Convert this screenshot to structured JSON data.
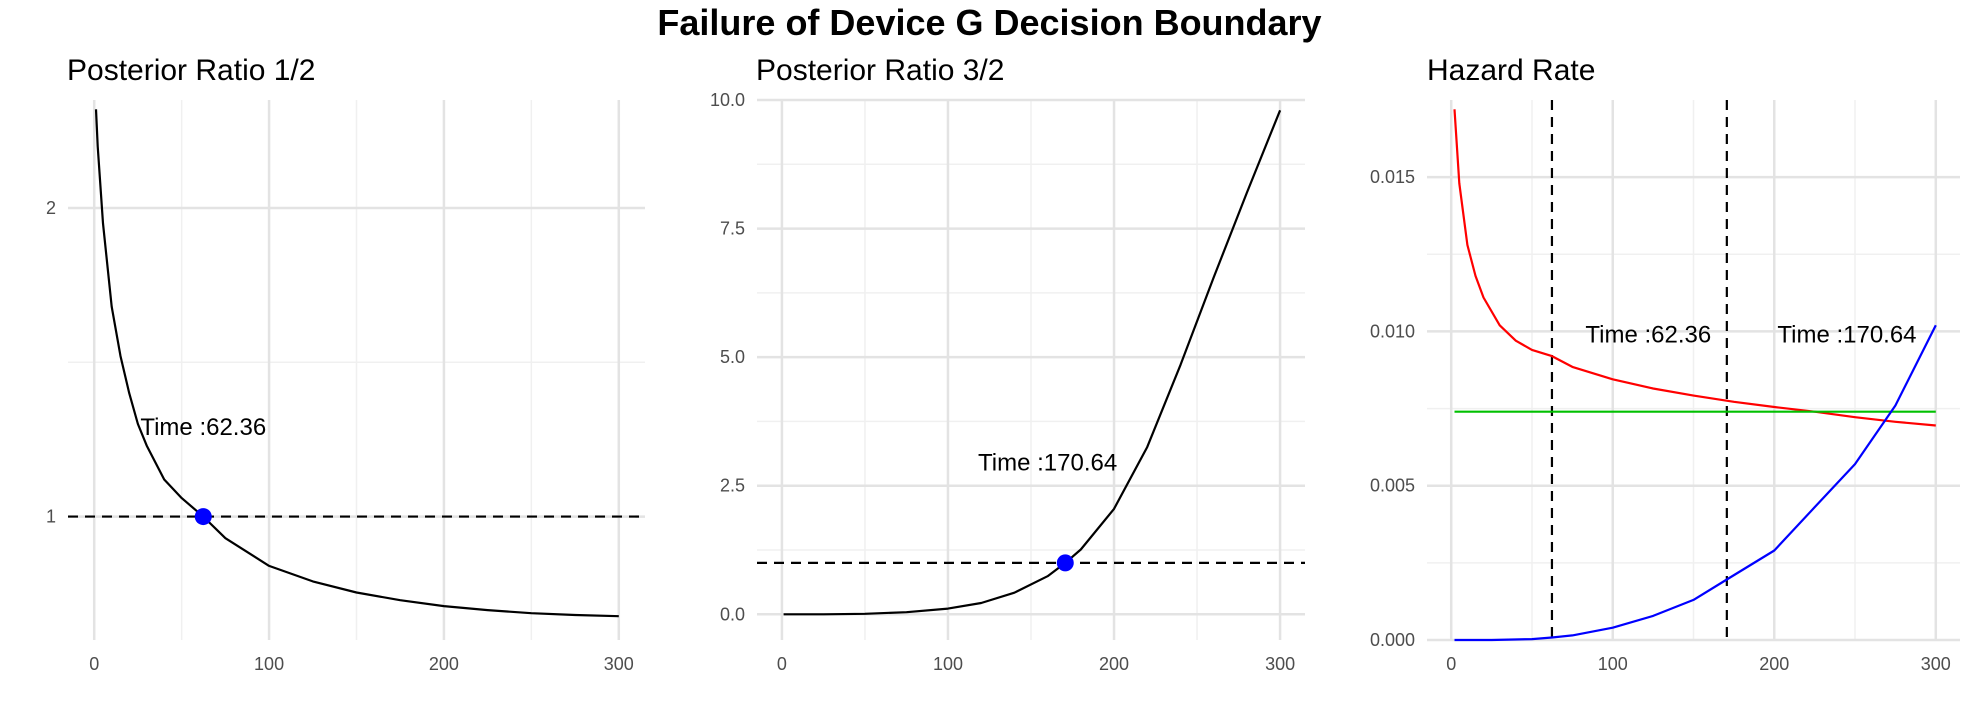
{
  "title": "Failure of Device G Decision Boundary",
  "chart_data": [
    {
      "type": "line",
      "title": "Posterior Ratio 1/2",
      "xlabel": "",
      "ylabel": "",
      "xlim": [
        0,
        300
      ],
      "ylim": [
        0.6,
        2.35
      ],
      "xticks": [
        0,
        100,
        200,
        300
      ],
      "xtick_labels": [
        "0",
        "100",
        "200",
        "300"
      ],
      "yticks": [
        1,
        2
      ],
      "ytick_labels": [
        "1",
        "2"
      ],
      "grid": true,
      "series": [
        {
          "color": "#000000",
          "x": [
            1,
            2,
            5,
            10,
            15,
            20,
            25,
            30,
            40,
            50,
            62.36,
            75,
            100,
            125,
            150,
            175,
            200,
            225,
            250,
            275,
            300
          ],
          "y": [
            2.32,
            2.2,
            1.95,
            1.68,
            1.52,
            1.4,
            1.3,
            1.23,
            1.12,
            1.06,
            1.0,
            0.93,
            0.84,
            0.79,
            0.754,
            0.729,
            0.71,
            0.697,
            0.687,
            0.681,
            0.677
          ]
        }
      ],
      "hlines": [
        {
          "y": 1,
          "style": "dashed"
        }
      ],
      "points": [
        {
          "x": 62.36,
          "y": 1,
          "color": "#0000ff"
        }
      ],
      "annotations": [
        {
          "text": "Time :62.36",
          "x": 62.36,
          "y": 1.29
        }
      ]
    },
    {
      "type": "line",
      "title": "Posterior Ratio 3/2",
      "xlabel": "",
      "ylabel": "",
      "xlim": [
        0,
        300
      ],
      "ylim": [
        -0.5,
        10.0
      ],
      "xticks": [
        0,
        100,
        200,
        300
      ],
      "xtick_labels": [
        "0",
        "100",
        "200",
        "300"
      ],
      "yticks": [
        0,
        2.5,
        5,
        7.5,
        10
      ],
      "ytick_labels": [
        "0.0",
        "2.5",
        "5.0",
        "7.5",
        "10.0"
      ],
      "grid": true,
      "series": [
        {
          "color": "#000000",
          "x": [
            1,
            25,
            50,
            75,
            100,
            120,
            140,
            160,
            170.64,
            180,
            200,
            220,
            240,
            260,
            280,
            300
          ],
          "y": [
            0.0,
            0.0,
            0.01,
            0.04,
            0.11,
            0.22,
            0.42,
            0.74,
            1.0,
            1.26,
            2.05,
            3.25,
            4.85,
            6.55,
            8.2,
            9.8
          ]
        }
      ],
      "hlines": [
        {
          "y": 1,
          "style": "dashed"
        }
      ],
      "points": [
        {
          "x": 170.64,
          "y": 1,
          "color": "#0000ff"
        }
      ],
      "annotations": [
        {
          "text": "Time :170.64",
          "x": 160,
          "y": 2.95
        }
      ]
    },
    {
      "type": "line",
      "title": "Hazard Rate",
      "xlabel": "",
      "ylabel": "",
      "xlim": [
        0,
        300
      ],
      "ylim": [
        0,
        0.0175
      ],
      "xticks": [
        0,
        100,
        200,
        300
      ],
      "xtick_labels": [
        "0",
        "100",
        "200",
        "300"
      ],
      "yticks": [
        0,
        0.005,
        0.01,
        0.015
      ],
      "ytick_labels": [
        "0.000",
        "0.005",
        "0.010",
        "0.015"
      ],
      "grid": true,
      "series": [
        {
          "color": "#ff0000",
          "x": [
            2,
            5,
            10,
            15,
            20,
            30,
            40,
            50,
            62.36,
            75,
            100,
            125,
            150,
            175,
            200,
            225,
            250,
            275,
            300
          ],
          "y": [
            0.0172,
            0.0148,
            0.0128,
            0.0118,
            0.0111,
            0.0102,
            0.0097,
            0.0094,
            0.0092,
            0.00885,
            0.00845,
            0.00815,
            0.00792,
            0.00772,
            0.00755,
            0.0074,
            0.00722,
            0.00707,
            0.00695
          ]
        },
        {
          "color": "#00c000",
          "x": [
            2,
            300
          ],
          "y": [
            0.0074,
            0.0074
          ]
        },
        {
          "color": "#0000ff",
          "x": [
            2,
            25,
            50,
            62.36,
            75,
            100,
            125,
            150,
            170.64,
            200,
            225,
            250,
            275,
            300
          ],
          "y": [
            0.0,
            0.0,
            3e-05,
            8e-05,
            0.00015,
            0.0004,
            0.00078,
            0.0013,
            0.00196,
            0.0029,
            0.0043,
            0.0057,
            0.0076,
            0.0102
          ]
        }
      ],
      "vlines": [
        {
          "x": 62.36,
          "style": "dashed"
        },
        {
          "x": 170.64,
          "style": "dashed"
        }
      ],
      "annotations": [
        {
          "text": "Time :62.36",
          "x": 122,
          "y": 0.0099
        },
        {
          "text": "Time :170.64",
          "x": 245,
          "y": 0.0099
        }
      ]
    }
  ]
}
